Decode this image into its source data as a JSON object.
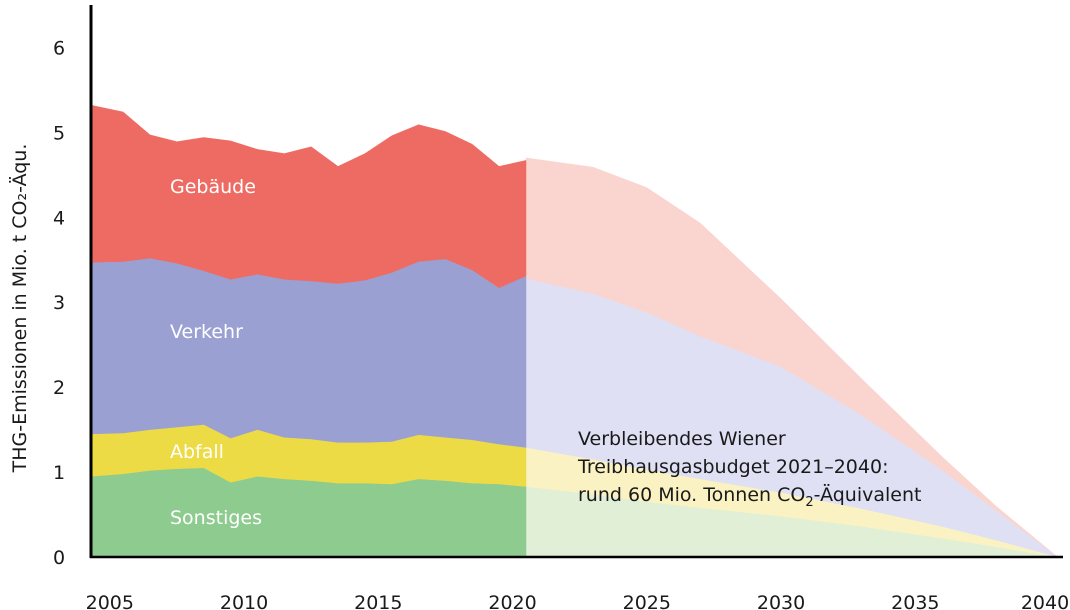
{
  "chart_data": {
    "type": "area",
    "stacked": true,
    "ylabel": "THG-Emissionen in Mio. t CO₂-Äqu.",
    "ylim": [
      0,
      6.5
    ],
    "yticks": [
      0,
      1,
      2,
      3,
      4,
      5,
      6
    ],
    "xlim": [
      2004.3,
      2040.5
    ],
    "xticks": [
      2005,
      2010,
      2015,
      2020,
      2025,
      2030,
      2035,
      2040
    ],
    "historical": {
      "x": [
        2004.3,
        2005.5,
        2006.5,
        2007.5,
        2008.5,
        2009.5,
        2010.5,
        2011.5,
        2012.5,
        2013.5,
        2014.5,
        2015.5,
        2016.5,
        2017.5,
        2018.5,
        2019.5,
        2020.5
      ],
      "series": [
        {
          "name": "Sonstiges",
          "color": "#8ecb8f",
          "values": [
            0.95,
            0.98,
            1.02,
            1.04,
            1.05,
            0.88,
            0.95,
            0.92,
            0.9,
            0.87,
            0.87,
            0.86,
            0.92,
            0.9,
            0.87,
            0.86,
            0.83
          ]
        },
        {
          "name": "Abfall",
          "color": "#ecdb45",
          "values": [
            0.5,
            0.48,
            0.48,
            0.49,
            0.51,
            0.52,
            0.55,
            0.49,
            0.49,
            0.48,
            0.48,
            0.5,
            0.52,
            0.51,
            0.51,
            0.47,
            0.46
          ]
        },
        {
          "name": "Verkehr",
          "color": "#9aa0d2",
          "values": [
            2.02,
            2.02,
            2.02,
            1.93,
            1.81,
            1.87,
            1.83,
            1.86,
            1.86,
            1.87,
            1.91,
            1.99,
            2.04,
            2.1,
            2.0,
            1.84,
            2.02
          ]
        },
        {
          "name": "Gebäude",
          "color": "#ee6b63",
          "values": [
            1.85,
            1.76,
            1.45,
            1.43,
            1.57,
            1.63,
            1.47,
            1.48,
            1.58,
            1.38,
            1.49,
            1.61,
            1.61,
            1.5,
            1.48,
            1.43,
            1.36
          ]
        }
      ]
    },
    "budget": {
      "x": [
        2020.5,
        2023,
        2025,
        2027,
        2030,
        2033,
        2036,
        2038,
        2040.3
      ],
      "series": [
        {
          "name": "Sonstiges",
          "color": "#e0efd6",
          "values": [
            0.83,
            0.74,
            0.65,
            0.58,
            0.48,
            0.36,
            0.22,
            0.12,
            0.0
          ]
        },
        {
          "name": "Abfall",
          "color": "#faf2c2",
          "values": [
            0.46,
            0.41,
            0.38,
            0.34,
            0.28,
            0.21,
            0.14,
            0.08,
            0.0
          ]
        },
        {
          "name": "Verkehr",
          "color": "#dfe0f4",
          "values": [
            1.99,
            1.95,
            1.85,
            1.68,
            1.48,
            1.1,
            0.66,
            0.35,
            0.0
          ]
        },
        {
          "name": "Gebäude",
          "color": "#fad5d0",
          "values": [
            1.42,
            1.49,
            1.47,
            1.33,
            0.8,
            0.43,
            0.16,
            0.05,
            0.0
          ]
        }
      ]
    },
    "series_labels": [
      {
        "name": "Gebäude",
        "label": "Gebäude"
      },
      {
        "name": "Verkehr",
        "label": "Verkehr"
      },
      {
        "name": "Abfall",
        "label": "Abfall"
      },
      {
        "name": "Sonstiges",
        "label": "Sonstiges"
      }
    ],
    "annotation": {
      "line1": "Verbleibendes Wiener",
      "line2": "Treibhausgasbudget 2021–2040:",
      "line3_prefix": "rund 60 Mio. Tonnen CO",
      "line3_sub": "2",
      "line3_suffix": "-Äquivalent"
    }
  }
}
